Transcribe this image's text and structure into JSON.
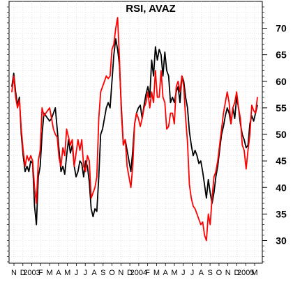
{
  "chart_data": {
    "type": "line",
    "title": "RSI, AVAZ",
    "y_range": [
      26,
      74
    ],
    "y_ticks": [
      30,
      35,
      40,
      45,
      50,
      55,
      60,
      65,
      70
    ],
    "x_labels": [
      "N",
      "D",
      "2003",
      "F",
      "M",
      "A",
      "M",
      "J",
      "J",
      "A",
      "S",
      "O",
      "N",
      "D",
      "2004",
      "F",
      "M",
      "A",
      "M",
      "J",
      "J",
      "A",
      "S",
      "O",
      "N",
      "D",
      "2005",
      "M"
    ],
    "grid": true,
    "series": [
      {
        "color": "#000000",
        "values": [
          59.0,
          61.5,
          58.0,
          55.5,
          57.0,
          50.0,
          46.0,
          43.0,
          44.0,
          43.0,
          45.0,
          44.5,
          36.5,
          33.0,
          42.0,
          44.0,
          50.0,
          54.0,
          53.5,
          53.0,
          52.5,
          53.0,
          54.0,
          55.0,
          51.0,
          47.0,
          43.0,
          44.0,
          42.5,
          46.0,
          49.0,
          46.5,
          48.0,
          44.0,
          42.0,
          43.0,
          45.0,
          44.5,
          42.0,
          45.0,
          44.0,
          41.0,
          36.0,
          34.5,
          36.0,
          35.5,
          42.0,
          50.0,
          51.0,
          53.0,
          55.0,
          56.0,
          55.0,
          60.0,
          65.0,
          68.0,
          66.0,
          63.0,
          55.0,
          48.0,
          49.0,
          47.0,
          45.0,
          43.0,
          47.0,
          52.0,
          54.0,
          55.0,
          55.5,
          53.0,
          55.5,
          57.5,
          59.0,
          57.0,
          64.0,
          61.0,
          66.5,
          64.0,
          66.0,
          65.0,
          61.0,
          65.5,
          62.0,
          61.0,
          56.0,
          57.0,
          56.0,
          58.0,
          59.0,
          56.0,
          61.0,
          60.0,
          57.0,
          55.0,
          50.5,
          48.0,
          46.0,
          47.0,
          46.0,
          44.5,
          45.0,
          43.0,
          40.5,
          38.0,
          41.5,
          39.0,
          37.0,
          39.0,
          42.0,
          44.0,
          47.0,
          50.0,
          51.5,
          53.5,
          55.0,
          54.0,
          52.0,
          55.0,
          53.0,
          57.0,
          55.0,
          52.0,
          50.0,
          49.0,
          47.5,
          48.0,
          52.0,
          53.5,
          52.5,
          54.0,
          55.5
        ]
      },
      {
        "color": "#ff0000",
        "values": [
          58.0,
          61.0,
          57.0,
          55.0,
          56.5,
          51.0,
          47.0,
          44.0,
          46.0,
          45.0,
          46.0,
          45.0,
          40.0,
          37.0,
          45.0,
          47.0,
          55.0,
          53.5,
          54.0,
          54.5,
          55.0,
          53.0,
          51.0,
          50.0,
          49.5,
          45.5,
          44.0,
          47.5,
          46.0,
          51.0,
          49.5,
          48.0,
          49.0,
          44.0,
          46.5,
          49.0,
          47.0,
          49.0,
          44.0,
          43.0,
          46.0,
          45.0,
          38.0,
          39.0,
          40.0,
          42.0,
          53.0,
          58.0,
          59.0,
          60.0,
          61.0,
          60.5,
          61.0,
          66.0,
          67.0,
          70.0,
          72.0,
          64.0,
          54.0,
          48.0,
          49.0,
          44.0,
          42.0,
          40.0,
          44.0,
          52.0,
          54.0,
          53.0,
          51.5,
          53.0,
          55.0,
          56.0,
          58.0,
          55.0,
          58.0,
          56.0,
          62.0,
          57.0,
          57.0,
          62.0,
          57.0,
          56.0,
          51.0,
          51.5,
          54.0,
          54.0,
          52.0,
          59.0,
          60.0,
          58.0,
          61.0,
          59.0,
          53.0,
          48.5,
          40.5,
          38.0,
          36.5,
          36.0,
          35.0,
          34.0,
          33.0,
          33.5,
          31.0,
          30.0,
          35.0,
          33.0,
          38.0,
          42.0,
          43.0,
          45.0,
          48.0,
          51.0,
          54.0,
          56.0,
          58.0,
          56.0,
          52.0,
          55.0,
          56.0,
          58.0,
          55.0,
          53.0,
          48.0,
          47.0,
          43.5,
          47.0,
          50.0,
          55.5,
          54.5,
          54.0,
          57.0
        ]
      }
    ]
  }
}
